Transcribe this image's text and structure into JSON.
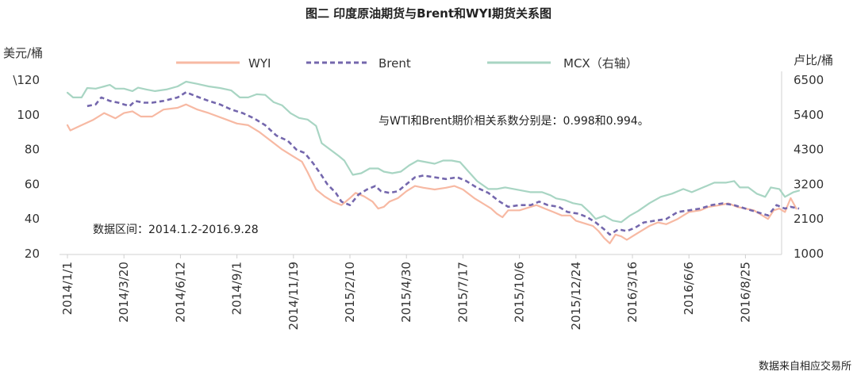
{
  "chart_data": {
    "type": "line",
    "title": "图二 印度原油期货与Brent和WYI期货关系图",
    "ylabel_left": "美元/桶",
    "ylabel_right": "卢比/桶",
    "yticks_left": [
      "\\120",
      "100",
      "80",
      "60",
      "40",
      "20"
    ],
    "ylim_left": [
      20,
      120
    ],
    "yticks_right": [
      "6500",
      "5400",
      "4300",
      "3200",
      "2100",
      "1000"
    ],
    "ylim_right": [
      1000,
      6500
    ],
    "x_tick_labels": [
      "2014/1/1",
      "2014/3/20",
      "2014/6/12",
      "2014/9/1",
      "2014/11/19",
      "2015/2/10",
      "2015/4/30",
      "2015/7/17",
      "2015/10/6",
      "2015/12/24",
      "2016/3/16",
      "2016/6/6",
      "2016/8/25"
    ],
    "x_range_index": [
      0,
      12.6
    ],
    "annotation": "与WTI和Brent期价相关系数分别是：0.998和0.994。",
    "date_range_note": "数据区间：2014.1.2-2016.9.28",
    "source": "数据来自相应交易所",
    "series": [
      {
        "name": "WYI",
        "axis": "left",
        "color": "#f7b9a3",
        "dash": "solid",
        "points": [
          [
            0,
            94
          ],
          [
            0.05,
            91
          ],
          [
            0.25,
            94
          ],
          [
            0.45,
            97
          ],
          [
            0.65,
            101
          ],
          [
            0.85,
            98
          ],
          [
            1.0,
            101
          ],
          [
            1.15,
            102
          ],
          [
            1.3,
            99
          ],
          [
            1.5,
            99
          ],
          [
            1.7,
            103
          ],
          [
            1.95,
            104
          ],
          [
            2.1,
            106
          ],
          [
            2.3,
            103
          ],
          [
            2.5,
            101
          ],
          [
            2.75,
            98
          ],
          [
            3.0,
            95
          ],
          [
            3.2,
            94
          ],
          [
            3.4,
            90
          ],
          [
            3.6,
            85
          ],
          [
            3.8,
            80
          ],
          [
            4.0,
            76
          ],
          [
            4.15,
            73
          ],
          [
            4.25,
            67
          ],
          [
            4.4,
            57
          ],
          [
            4.55,
            53
          ],
          [
            4.7,
            50
          ],
          [
            4.85,
            48
          ],
          [
            5.0,
            52
          ],
          [
            5.1,
            55
          ],
          [
            5.25,
            53
          ],
          [
            5.4,
            50
          ],
          [
            5.5,
            46
          ],
          [
            5.6,
            47
          ],
          [
            5.7,
            50
          ],
          [
            5.85,
            52
          ],
          [
            6.0,
            56
          ],
          [
            6.15,
            59
          ],
          [
            6.3,
            58
          ],
          [
            6.5,
            57
          ],
          [
            6.7,
            58
          ],
          [
            6.85,
            59
          ],
          [
            7.0,
            57
          ],
          [
            7.2,
            52
          ],
          [
            7.35,
            49
          ],
          [
            7.5,
            46
          ],
          [
            7.6,
            43
          ],
          [
            7.7,
            41
          ],
          [
            7.8,
            45
          ],
          [
            8.0,
            45
          ],
          [
            8.2,
            47
          ],
          [
            8.3,
            48
          ],
          [
            8.45,
            46
          ],
          [
            8.6,
            44
          ],
          [
            8.75,
            42
          ],
          [
            8.9,
            42
          ],
          [
            9.0,
            39
          ],
          [
            9.2,
            37
          ],
          [
            9.3,
            36
          ],
          [
            9.4,
            33
          ],
          [
            9.5,
            29
          ],
          [
            9.6,
            26
          ],
          [
            9.7,
            31
          ],
          [
            9.8,
            30
          ],
          [
            9.9,
            28
          ],
          [
            10.0,
            30
          ],
          [
            10.1,
            32
          ],
          [
            10.3,
            36
          ],
          [
            10.45,
            38
          ],
          [
            10.6,
            37
          ],
          [
            10.8,
            40
          ],
          [
            11.0,
            44
          ],
          [
            11.2,
            45
          ],
          [
            11.35,
            47
          ],
          [
            11.55,
            48
          ],
          [
            11.7,
            49
          ],
          [
            11.85,
            47
          ],
          [
            12.0,
            46
          ],
          [
            12.15,
            45
          ],
          [
            12.3,
            42
          ],
          [
            12.4,
            40
          ],
          [
            12.5,
            45
          ],
          [
            12.6,
            46
          ],
          [
            12.7,
            44
          ],
          [
            12.8,
            52
          ],
          [
            12.9,
            46
          ]
        ]
      },
      {
        "name": "Brent",
        "axis": "left",
        "color": "#7467ad",
        "dash": "dashed",
        "points": [
          [
            0.35,
            105
          ],
          [
            0.5,
            106
          ],
          [
            0.6,
            110
          ],
          [
            0.75,
            108
          ],
          [
            0.9,
            107
          ],
          [
            1.0,
            106
          ],
          [
            1.1,
            105
          ],
          [
            1.2,
            108
          ],
          [
            1.35,
            107
          ],
          [
            1.5,
            107
          ],
          [
            1.7,
            108
          ],
          [
            1.95,
            110
          ],
          [
            2.1,
            113
          ],
          [
            2.25,
            111
          ],
          [
            2.5,
            108
          ],
          [
            2.7,
            106
          ],
          [
            2.9,
            103
          ],
          [
            3.1,
            101
          ],
          [
            3.3,
            98
          ],
          [
            3.5,
            94
          ],
          [
            3.7,
            88
          ],
          [
            3.9,
            85
          ],
          [
            4.05,
            80
          ],
          [
            4.2,
            78
          ],
          [
            4.35,
            72
          ],
          [
            4.5,
            65
          ],
          [
            4.6,
            60
          ],
          [
            4.75,
            55
          ],
          [
            4.85,
            50
          ],
          [
            5.0,
            48
          ],
          [
            5.15,
            54
          ],
          [
            5.3,
            57
          ],
          [
            5.45,
            59
          ],
          [
            5.55,
            56
          ],
          [
            5.7,
            55
          ],
          [
            5.85,
            56
          ],
          [
            6.0,
            60
          ],
          [
            6.15,
            64
          ],
          [
            6.3,
            65
          ],
          [
            6.5,
            64
          ],
          [
            6.7,
            63
          ],
          [
            6.9,
            64
          ],
          [
            7.05,
            62
          ],
          [
            7.25,
            58
          ],
          [
            7.45,
            55
          ],
          [
            7.65,
            50
          ],
          [
            7.8,
            47
          ],
          [
            8.0,
            48
          ],
          [
            8.2,
            48
          ],
          [
            8.35,
            50
          ],
          [
            8.5,
            48
          ],
          [
            8.7,
            47
          ],
          [
            8.85,
            44
          ],
          [
            9.05,
            43
          ],
          [
            9.2,
            41
          ],
          [
            9.35,
            38
          ],
          [
            9.5,
            34
          ],
          [
            9.6,
            31
          ],
          [
            9.75,
            34
          ],
          [
            9.9,
            33
          ],
          [
            10.05,
            35
          ],
          [
            10.2,
            38
          ],
          [
            10.4,
            39
          ],
          [
            10.6,
            40
          ],
          [
            10.8,
            44
          ],
          [
            11.0,
            45
          ],
          [
            11.2,
            46
          ],
          [
            11.4,
            48
          ],
          [
            11.6,
            49
          ],
          [
            11.8,
            48
          ],
          [
            12.0,
            46
          ],
          [
            12.2,
            44
          ],
          [
            12.4,
            42
          ],
          [
            12.55,
            48
          ],
          [
            12.7,
            46
          ],
          [
            12.8,
            47
          ],
          [
            12.95,
            46
          ]
        ]
      },
      {
        "name": "MCX（右轴）",
        "axis": "right",
        "color": "#a8d5c3",
        "dash": "solid",
        "points": [
          [
            0,
            6100
          ],
          [
            0.1,
            5950
          ],
          [
            0.25,
            5950
          ],
          [
            0.35,
            6250
          ],
          [
            0.5,
            6230
          ],
          [
            0.65,
            6300
          ],
          [
            0.75,
            6350
          ],
          [
            0.85,
            6230
          ],
          [
            1.0,
            6230
          ],
          [
            1.15,
            6150
          ],
          [
            1.25,
            6260
          ],
          [
            1.4,
            6200
          ],
          [
            1.55,
            6150
          ],
          [
            1.75,
            6200
          ],
          [
            1.95,
            6300
          ],
          [
            2.1,
            6450
          ],
          [
            2.3,
            6380
          ],
          [
            2.5,
            6300
          ],
          [
            2.7,
            6250
          ],
          [
            2.9,
            6170
          ],
          [
            3.05,
            5950
          ],
          [
            3.2,
            5950
          ],
          [
            3.35,
            6050
          ],
          [
            3.5,
            6030
          ],
          [
            3.65,
            5800
          ],
          [
            3.8,
            5700
          ],
          [
            3.95,
            5450
          ],
          [
            4.1,
            5300
          ],
          [
            4.25,
            5250
          ],
          [
            4.4,
            5050
          ],
          [
            4.5,
            4500
          ],
          [
            4.65,
            4300
          ],
          [
            4.8,
            4100
          ],
          [
            4.9,
            3950
          ],
          [
            5.05,
            3500
          ],
          [
            5.2,
            3550
          ],
          [
            5.35,
            3700
          ],
          [
            5.5,
            3700
          ],
          [
            5.6,
            3600
          ],
          [
            5.75,
            3550
          ],
          [
            5.9,
            3600
          ],
          [
            6.05,
            3800
          ],
          [
            6.2,
            3950
          ],
          [
            6.35,
            3900
          ],
          [
            6.5,
            3850
          ],
          [
            6.65,
            3950
          ],
          [
            6.8,
            3950
          ],
          [
            6.95,
            3900
          ],
          [
            7.1,
            3600
          ],
          [
            7.25,
            3300
          ],
          [
            7.45,
            3050
          ],
          [
            7.6,
            3050
          ],
          [
            7.75,
            3100
          ],
          [
            7.9,
            3050
          ],
          [
            8.05,
            3000
          ],
          [
            8.2,
            2950
          ],
          [
            8.4,
            2950
          ],
          [
            8.55,
            2850
          ],
          [
            8.65,
            2750
          ],
          [
            8.8,
            2700
          ],
          [
            8.95,
            2600
          ],
          [
            9.1,
            2550
          ],
          [
            9.25,
            2300
          ],
          [
            9.35,
            2100
          ],
          [
            9.5,
            2200
          ],
          [
            9.65,
            2050
          ],
          [
            9.8,
            2000
          ],
          [
            9.95,
            2200
          ],
          [
            10.1,
            2350
          ],
          [
            10.3,
            2600
          ],
          [
            10.5,
            2800
          ],
          [
            10.7,
            2900
          ],
          [
            10.9,
            3050
          ],
          [
            11.05,
            2950
          ],
          [
            11.25,
            3100
          ],
          [
            11.45,
            3250
          ],
          [
            11.65,
            3250
          ],
          [
            11.8,
            3300
          ],
          [
            11.9,
            3100
          ],
          [
            12.05,
            3100
          ],
          [
            12.2,
            2900
          ],
          [
            12.35,
            2800
          ],
          [
            12.45,
            3100
          ],
          [
            12.6,
            3050
          ],
          [
            12.7,
            2800
          ],
          [
            12.85,
            2950
          ],
          [
            12.95,
            3000
          ]
        ]
      }
    ]
  }
}
